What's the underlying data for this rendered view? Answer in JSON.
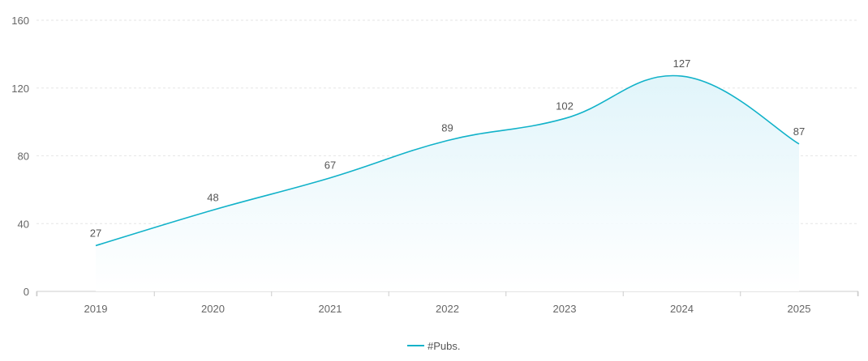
{
  "chart_data": {
    "type": "area",
    "categories": [
      "2019",
      "2020",
      "2021",
      "2022",
      "2023",
      "2024",
      "2025"
    ],
    "series": [
      {
        "name": "#Pubs.",
        "values": [
          27,
          48,
          67,
          89,
          102,
          127,
          87
        ]
      }
    ],
    "yticks": [
      0,
      40,
      80,
      120,
      160
    ],
    "ylim": [
      0,
      160
    ],
    "grid": true,
    "legend_position": "bottom-center",
    "data_labels": true,
    "smooth": true,
    "colors": {
      "line": "#11b2c9",
      "fill": "#e4f7fb",
      "grid": "#e6e6e6",
      "axis": "#cccccc"
    }
  }
}
